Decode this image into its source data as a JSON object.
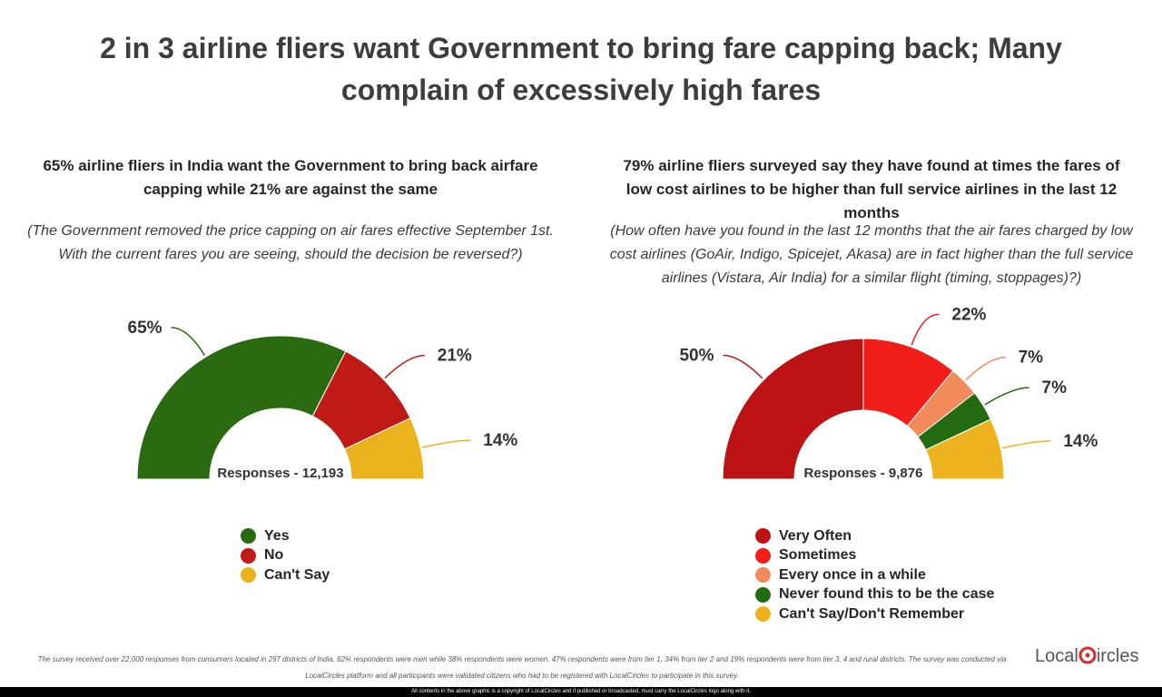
{
  "title": "2 in 3 airline fliers want Government to bring fare capping back; Many complain of excessively high fares",
  "chart_data": [
    {
      "type": "pie",
      "subtype": "half-donut",
      "title": "65% airline fliers in India want the Government to bring back airfare capping while 21% are against the same",
      "question": "(The Government removed the price capping on air fares effective September 1st. With the current fares you are seeing, should the decision be reversed?)",
      "center_label": "Responses - 12,193",
      "legend_position": "bottom-center",
      "categories": [
        "Yes",
        "No",
        "Can't Say"
      ],
      "values": [
        65,
        21,
        14
      ],
      "labels": [
        "65%",
        "21%",
        "14%"
      ],
      "colors": [
        "#2a6b11",
        "#bf1a15",
        "#eab31d"
      ]
    },
    {
      "type": "pie",
      "subtype": "half-donut",
      "title": "79% airline fliers surveyed say they have found at times the fares of low cost airlines to be higher than full service airlines in the last 12 months",
      "question": "(How often have you found in the last 12 months that the air fares charged by low cost airlines (GoAir, Indigo, Spicejet, Akasa) are in fact higher than the full service airlines (Vistara, Air India) for a similar flight (timing, stoppages)?)",
      "center_label": "Responses - 9,876",
      "legend_position": "bottom-center",
      "categories": [
        "Very Often",
        "Sometimes",
        "Every once in a while",
        "Never found this to be the case",
        "Can't Say/Don't Remember"
      ],
      "values": [
        50,
        22,
        7,
        7,
        14
      ],
      "labels": [
        "50%",
        "22%",
        "7%",
        "7%",
        "14%"
      ],
      "colors": [
        "#bd1314",
        "#f21e19",
        "#f28a5c",
        "#226b11",
        "#ecb31f"
      ]
    }
  ],
  "footer": {
    "note": "The survey received over 22,000 responses from consumers located in 297 districts of India. 62% respondents were men while 38% respondents were women. 47% respondents were from tier 1, 34% from tier 2 and 19% respondents were from tier 3, 4 and rural districts. The survey was conducted via LocalCircles platform and all participants were validated citizens who had to be registered with LocalCircles to participate in this survey.",
    "copyright": "All contents in the above graphic is a copyright of LocalCircles and if published or broadcasted, must carry the LocalCircles logo along with it.",
    "logo_text_a": "Local",
    "logo_text_b": "ircles"
  }
}
